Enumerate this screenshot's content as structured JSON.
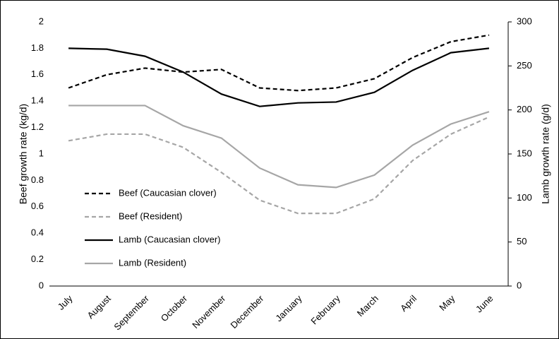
{
  "chart_data": {
    "type": "line",
    "y_label": "Beef growth rate (kg/d)",
    "y2_label": "Lamb growth rate (g/d)",
    "categories": [
      "July",
      "August",
      "September",
      "October",
      "November",
      "December",
      "January",
      "February",
      "March",
      "April",
      "May",
      "June"
    ],
    "series": [
      {
        "name": "Beef (Caucasian clover)",
        "color": "#000000",
        "dash": true,
        "values": [
          1.5,
          1.6,
          1.65,
          1.62,
          1.64,
          1.5,
          1.48,
          1.5,
          1.57,
          1.73,
          1.85,
          1.9
        ]
      },
      {
        "name": "Beef (Resident)",
        "color": "#a6a6a6",
        "dash": true,
        "values": [
          1.1,
          1.15,
          1.15,
          1.05,
          0.86,
          0.65,
          0.55,
          0.55,
          0.66,
          0.95,
          1.15,
          1.28
        ]
      },
      {
        "name": "Lamb (Caucasian clover)",
        "color": "#000000",
        "dash": false,
        "axis": "y2",
        "values": [
          270,
          269,
          261,
          243,
          218,
          204,
          208,
          209,
          220,
          245,
          265,
          270
        ]
      },
      {
        "name": "Lamb (Resident)",
        "color": "#a6a6a6",
        "dash": false,
        "axis": "y2",
        "values": [
          205,
          205,
          205,
          182,
          168,
          134,
          115,
          112,
          126,
          160,
          184,
          198
        ]
      }
    ],
    "ylim": [
      0,
      2
    ],
    "yticks": [
      0,
      0.2,
      0.4,
      0.6,
      0.8,
      1,
      1.2,
      1.4,
      1.6,
      1.8,
      2
    ],
    "y2lim": [
      0,
      300
    ],
    "y2ticks": [
      0,
      50,
      100,
      150,
      200,
      250,
      300
    ]
  }
}
